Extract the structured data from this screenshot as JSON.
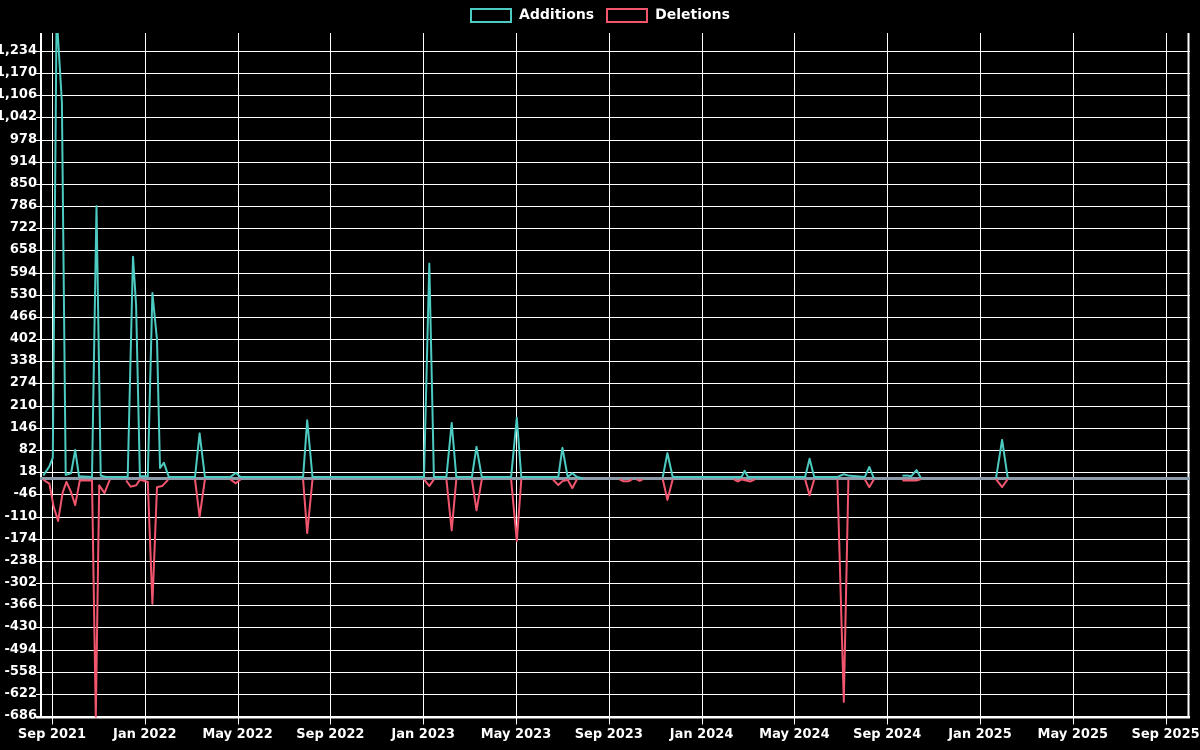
{
  "chart_data": {
    "type": "line",
    "title": "",
    "legend_position": "top-center",
    "background_color": "#000000",
    "grid_color": "#ffffff",
    "axis_text_color": "#ffffff",
    "zero_line_color": "#8c9baa",
    "grid": true,
    "x_axis": {
      "start": "2021-09-01",
      "end": "2025-10-01",
      "tick_labels": [
        "Sep 2021",
        "Jan 2022",
        "May 2022",
        "Sep 2022",
        "Jan 2023",
        "May 2023",
        "Sep 2023",
        "Jan 2024",
        "May 2024",
        "Sep 2024",
        "Jan 2025",
        "May 2025",
        "Sep 2025"
      ],
      "tick_month_offsets": [
        0,
        4,
        8,
        12,
        16,
        20,
        24,
        28,
        32,
        36,
        40,
        44,
        48
      ]
    },
    "y_axis": {
      "tick_labels": [
        "1,234",
        "1,170",
        "1,106",
        "1,042",
        "978",
        "914",
        "850",
        "786",
        "722",
        "658",
        "594",
        "530",
        "466",
        "402",
        "338",
        "274",
        "210",
        "146",
        "82",
        "18",
        "-46",
        "-110",
        "-174",
        "-238",
        "-302",
        "-366",
        "-430",
        "-494",
        "-558",
        "-622",
        "-686"
      ],
      "tick_values": [
        1234,
        1170,
        1106,
        1042,
        978,
        914,
        850,
        786,
        722,
        658,
        594,
        530,
        466,
        402,
        338,
        274,
        210,
        146,
        82,
        18,
        -46,
        -110,
        -174,
        -238,
        -302,
        -366,
        -430,
        -494,
        -558,
        -622,
        -686
      ],
      "visible_min": -700,
      "visible_max": 1285
    },
    "series": [
      {
        "name": "Additions",
        "color": "#4dcac1",
        "points": [
          [
            "2021-08-20",
            8
          ],
          [
            "2021-08-28",
            35
          ],
          [
            "2021-09-02",
            60
          ],
          [
            "2021-09-07",
            1340
          ],
          [
            "2021-09-14",
            1085
          ],
          [
            "2021-09-19",
            10
          ],
          [
            "2021-09-26",
            15
          ],
          [
            "2021-10-01",
            82
          ],
          [
            "2021-10-06",
            6
          ],
          [
            "2021-10-23",
            4
          ],
          [
            "2021-10-29",
            786
          ],
          [
            "2021-11-04",
            8
          ],
          [
            "2021-11-11",
            4
          ],
          [
            "2021-12-09",
            4
          ],
          [
            "2021-12-16",
            640
          ],
          [
            "2021-12-20",
            500
          ],
          [
            "2021-12-25",
            6
          ],
          [
            "2022-01-05",
            6
          ],
          [
            "2022-01-11",
            535
          ],
          [
            "2022-01-17",
            400
          ],
          [
            "2022-01-21",
            30
          ],
          [
            "2022-01-26",
            45
          ],
          [
            "2022-02-02",
            4
          ],
          [
            "2022-03-06",
            4
          ],
          [
            "2022-03-12",
            130
          ],
          [
            "2022-03-19",
            4
          ],
          [
            "2022-04-22",
            4
          ],
          [
            "2022-04-29",
            16
          ],
          [
            "2022-05-05",
            4
          ],
          [
            "2022-07-26",
            4
          ],
          [
            "2022-08-01",
            168
          ],
          [
            "2022-08-08",
            4
          ],
          [
            "2023-01-02",
            4
          ],
          [
            "2023-01-09",
            620
          ],
          [
            "2023-01-15",
            4
          ],
          [
            "2023-02-01",
            4
          ],
          [
            "2023-02-08",
            160
          ],
          [
            "2023-02-14",
            4
          ],
          [
            "2023-03-04",
            4
          ],
          [
            "2023-03-10",
            91
          ],
          [
            "2023-03-17",
            4
          ],
          [
            "2023-04-25",
            4
          ],
          [
            "2023-05-02",
            175
          ],
          [
            "2023-05-08",
            4
          ],
          [
            "2023-06-26",
            4
          ],
          [
            "2023-07-01",
            88
          ],
          [
            "2023-07-08",
            4
          ],
          [
            "2023-07-14",
            15
          ],
          [
            "2023-07-20",
            4
          ],
          [
            "2023-07-28",
            0
          ],
          [
            "2023-08-04",
            null
          ],
          [
            "2023-11-11",
            4
          ],
          [
            "2023-11-17",
            73
          ],
          [
            "2023-11-24",
            4
          ],
          [
            "2024-02-23",
            4
          ],
          [
            "2024-02-27",
            22
          ],
          [
            "2024-03-01",
            4
          ],
          [
            "2024-05-15",
            4
          ],
          [
            "2024-05-21",
            57
          ],
          [
            "2024-05-27",
            4
          ],
          [
            "2024-06-27",
            4
          ],
          [
            "2024-07-05",
            12
          ],
          [
            "2024-07-11",
            8
          ],
          [
            "2024-08-02",
            4
          ],
          [
            "2024-08-08",
            33
          ],
          [
            "2024-08-14",
            0
          ],
          [
            "2024-08-21",
            null
          ],
          [
            "2024-09-21",
            8
          ],
          [
            "2024-09-28",
            8
          ],
          [
            "2024-10-02",
            6
          ],
          [
            "2024-10-09",
            24
          ],
          [
            "2024-10-15",
            0
          ],
          [
            "2024-10-22",
            null
          ],
          [
            "2025-01-22",
            0
          ],
          [
            "2025-01-30",
            111
          ],
          [
            "2025-02-07",
            0
          ]
        ]
      },
      {
        "name": "Deletions",
        "color": "#f2566f",
        "points": [
          [
            "2021-08-20",
            -4
          ],
          [
            "2021-08-28",
            -15
          ],
          [
            "2021-09-03",
            -80
          ],
          [
            "2021-09-09",
            -123
          ],
          [
            "2021-09-15",
            -40
          ],
          [
            "2021-09-20",
            -10
          ],
          [
            "2021-09-26",
            -40
          ],
          [
            "2021-10-01",
            -77
          ],
          [
            "2021-10-07",
            -6
          ],
          [
            "2021-10-23",
            -6
          ],
          [
            "2021-10-28",
            -690
          ],
          [
            "2021-11-02",
            -20
          ],
          [
            "2021-11-09",
            -42
          ],
          [
            "2021-11-16",
            -4
          ],
          [
            "2021-11-23",
            null
          ],
          [
            "2021-12-07",
            -6
          ],
          [
            "2021-12-13",
            -24
          ],
          [
            "2021-12-20",
            -20
          ],
          [
            "2021-12-25",
            -4
          ],
          [
            "2022-01-05",
            -10
          ],
          [
            "2022-01-11",
            -362
          ],
          [
            "2022-01-17",
            -25
          ],
          [
            "2022-01-24",
            -22
          ],
          [
            "2022-02-01",
            -4
          ],
          [
            "2022-02-08",
            null
          ],
          [
            "2022-03-06",
            -3
          ],
          [
            "2022-03-12",
            -111
          ],
          [
            "2022-03-19",
            -3
          ],
          [
            "2022-03-26",
            null
          ],
          [
            "2022-04-22",
            -3
          ],
          [
            "2022-04-29",
            -14
          ],
          [
            "2022-05-05",
            -3
          ],
          [
            "2022-05-12",
            null
          ],
          [
            "2022-07-26",
            -3
          ],
          [
            "2022-08-01",
            -158
          ],
          [
            "2022-08-08",
            -3
          ],
          [
            "2022-08-15",
            null
          ],
          [
            "2023-01-02",
            -3
          ],
          [
            "2023-01-09",
            -22
          ],
          [
            "2023-01-15",
            -3
          ],
          [
            "2023-01-22",
            null
          ],
          [
            "2023-02-01",
            -3
          ],
          [
            "2023-02-08",
            -150
          ],
          [
            "2023-02-14",
            -3
          ],
          [
            "2023-02-21",
            null
          ],
          [
            "2023-03-04",
            -3
          ],
          [
            "2023-03-10",
            -92
          ],
          [
            "2023-03-17",
            -3
          ],
          [
            "2023-03-24",
            null
          ],
          [
            "2023-04-25",
            -3
          ],
          [
            "2023-05-02",
            -181
          ],
          [
            "2023-05-08",
            -3
          ],
          [
            "2023-05-15",
            null
          ],
          [
            "2023-06-19",
            -3
          ],
          [
            "2023-06-26",
            -19
          ],
          [
            "2023-07-01",
            -8
          ],
          [
            "2023-07-08",
            -4
          ],
          [
            "2023-07-14",
            -28
          ],
          [
            "2023-07-20",
            -3
          ],
          [
            "2023-07-28",
            null
          ],
          [
            "2023-09-15",
            -3
          ],
          [
            "2023-09-20",
            -8
          ],
          [
            "2023-09-27",
            -8
          ],
          [
            "2023-10-01",
            -3
          ],
          [
            "2023-10-05",
            null
          ],
          [
            "2023-10-07",
            -3
          ],
          [
            "2023-10-11",
            -7
          ],
          [
            "2023-10-15",
            -3
          ],
          [
            "2023-10-20",
            null
          ],
          [
            "2023-11-11",
            -3
          ],
          [
            "2023-11-17",
            -62
          ],
          [
            "2023-11-24",
            -3
          ],
          [
            "2023-12-01",
            null
          ],
          [
            "2024-02-13",
            -3
          ],
          [
            "2024-02-18",
            -9
          ],
          [
            "2024-02-23",
            -3
          ],
          [
            "2024-03-04",
            -9
          ],
          [
            "2024-03-10",
            -3
          ],
          [
            "2024-03-16",
            null
          ],
          [
            "2024-05-15",
            -3
          ],
          [
            "2024-05-21",
            -49
          ],
          [
            "2024-05-27",
            -3
          ],
          [
            "2024-06-03",
            null
          ],
          [
            "2024-06-27",
            -3
          ],
          [
            "2024-07-05",
            -645
          ],
          [
            "2024-07-11",
            -3
          ],
          [
            "2024-07-18",
            null
          ],
          [
            "2024-08-02",
            -3
          ],
          [
            "2024-08-08",
            -25
          ],
          [
            "2024-08-14",
            -3
          ],
          [
            "2024-08-21",
            null
          ],
          [
            "2024-09-21",
            -6
          ],
          [
            "2024-10-09",
            -6
          ],
          [
            "2024-10-15",
            -2
          ],
          [
            "2024-10-22",
            null
          ],
          [
            "2025-01-22",
            -2
          ],
          [
            "2025-01-30",
            -25
          ],
          [
            "2025-02-07",
            -2
          ]
        ]
      }
    ]
  }
}
